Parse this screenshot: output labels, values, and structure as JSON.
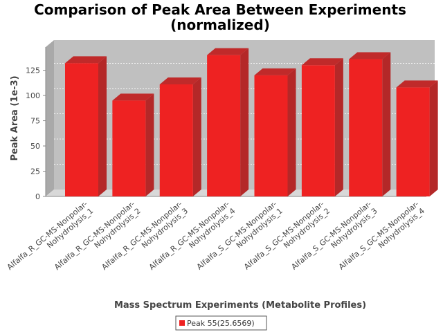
{
  "chart_data": {
    "type": "bar",
    "title": [
      "Comparison of Peak Area Between Experiments",
      "(normalized)"
    ],
    "xlabel": "Mass Spectrum Experiments (Metabolite Profiles)",
    "ylabel": "Peak Area (1e-3)",
    "ylim": [
      0,
      140
    ],
    "yticks": [
      0,
      25,
      50,
      75,
      100,
      125
    ],
    "grid": true,
    "legend_position": "bottom",
    "categories": [
      [
        "Alfalfa_R_GC-MS-Nonpolar-",
        "Nohydrolysis_1"
      ],
      [
        "Alfalfa_R_GC-MS-Nonpolar-",
        "Nohydrolysis_2"
      ],
      [
        "Alfalfa_R_GC-MS-Nonpolar-",
        "Nohydrolysis_3"
      ],
      [
        "Alfalfa_R_GC-MS-Nonpolar-",
        "Nohydrolysis_4"
      ],
      [
        "Alfalfa_S_GC-MS-Nonpolar-",
        "Nohydrolysis_1"
      ],
      [
        "Alfalfa_S_GC-MS-Nonpolar-",
        "Nohydrolysis_2"
      ],
      [
        "Alfalfa_S_GC-MS-Nonpolar-",
        "Nohydrolysis_3"
      ],
      [
        "Alfalfa_S_GC-MS-Nonpolar-",
        "Nohydrolysis_4"
      ]
    ],
    "series": [
      {
        "name": "Peak 55(25.6569)",
        "color": "#ee2222",
        "values": [
          132,
          95,
          111,
          140,
          120,
          130,
          136,
          108
        ]
      }
    ]
  }
}
